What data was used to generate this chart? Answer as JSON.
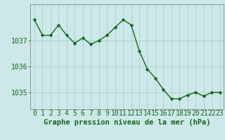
{
  "hours": [
    0,
    1,
    2,
    3,
    4,
    5,
    6,
    7,
    8,
    9,
    10,
    11,
    12,
    13,
    14,
    15,
    16,
    17,
    18,
    19,
    20,
    21,
    22,
    23
  ],
  "pressure": [
    1037.8,
    1037.2,
    1037.2,
    1037.6,
    1037.2,
    1036.9,
    1037.1,
    1036.85,
    1037.0,
    1037.2,
    1037.5,
    1037.8,
    1037.6,
    1036.6,
    1035.9,
    1035.55,
    1035.1,
    1034.75,
    1034.75,
    1034.9,
    1035.0,
    1034.85,
    1035.0,
    1035.0
  ],
  "line_color": "#1a6620",
  "marker_color": "#1a6620",
  "bg_color": "#cce8e8",
  "grid_color": "#aacece",
  "axis_color": "#1a6620",
  "border_color": "#888888",
  "ylim": [
    1034.35,
    1038.4
  ],
  "yticks": [
    1035,
    1036,
    1037
  ],
  "xlabel": "Graphe pression niveau de la mer (hPa)",
  "xlabel_fontsize": 7.5,
  "tick_fontsize": 7,
  "line_width": 1.0,
  "marker_size": 2.5
}
